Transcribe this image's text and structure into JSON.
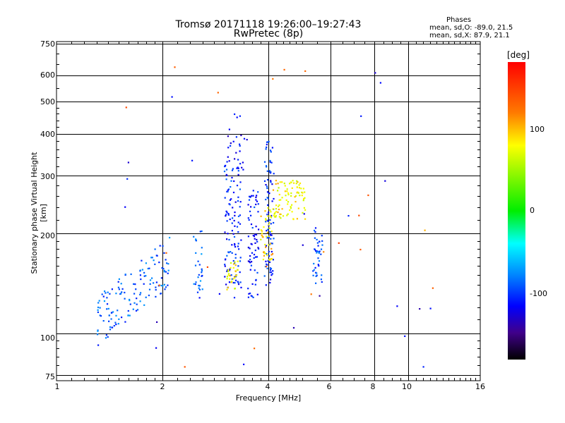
{
  "chart_data": {
    "type": "scatter",
    "title": "Tromsø 20171118 19:26:00–19:27:43",
    "subtitle": "RwPretec (8p)",
    "xlabel": "Frequency [MHz]",
    "ylabel": "Stationary phase Virtual Height [km]",
    "xscale": "log",
    "yscale": "log",
    "xlim": [
      1,
      16
    ],
    "ylim": [
      72,
      760
    ],
    "x_ticks": [
      "1",
      "2",
      "4",
      "6",
      "8",
      "10",
      "16"
    ],
    "y_ticks": [
      "75",
      "100",
      "200",
      "300",
      "400",
      "500",
      "600",
      "750"
    ],
    "grid": true,
    "phase_stats": {
      "heading": "Phases",
      "o_mode": "mean, sd,O: -89.0, 21.5",
      "x_mode": "mean, sd,X:  87.9, 21.1"
    },
    "colorbar": {
      "label": "[deg]",
      "range": [
        -180,
        180
      ],
      "ticks": [
        "100",
        "0",
        "-100"
      ]
    },
    "clusters": [
      {
        "name": "low-frequency trace",
        "x_range": [
          1.3,
          2.1
        ],
        "y_range": [
          105,
          210
        ],
        "phase": -90,
        "count": 140
      },
      {
        "name": "2.5 MHz column",
        "x_range": [
          2.45,
          2.6
        ],
        "y_range": [
          130,
          215
        ],
        "phase": -85,
        "count": 30
      },
      {
        "name": "3.1 MHz column",
        "x_range": [
          3.0,
          3.35
        ],
        "y_range": [
          128,
          320
        ],
        "phase": -105,
        "count": 110
      },
      {
        "name": "3.1 MHz high echoes",
        "x_range": [
          3.0,
          3.5
        ],
        "y_range": [
          300,
          460
        ],
        "phase": -115,
        "count": 30
      },
      {
        "name": "3.6 MHz column",
        "x_range": [
          3.5,
          3.75
        ],
        "y_range": [
          128,
          270
        ],
        "phase": -110,
        "count": 70
      },
      {
        "name": "4.0 MHz column",
        "x_range": [
          3.9,
          4.15
        ],
        "y_range": [
          140,
          380
        ],
        "phase": -105,
        "count": 90
      },
      {
        "name": "4.5-5 MHz X-trace",
        "x_range": [
          4.1,
          5.1
        ],
        "y_range": [
          220,
          290
        ],
        "phase": 95,
        "count": 90
      },
      {
        "name": "4.0 MHz X-trace",
        "x_range": [
          3.8,
          4.1
        ],
        "y_range": [
          165,
          240
        ],
        "phase": 100,
        "count": 45
      },
      {
        "name": "3.2 MHz X-echoes",
        "x_range": [
          3.05,
          3.3
        ],
        "y_range": [
          135,
          170
        ],
        "phase": 95,
        "count": 30
      },
      {
        "name": "5.5 MHz column",
        "x_range": [
          5.35,
          5.7
        ],
        "y_range": [
          140,
          210
        ],
        "phase": -95,
        "count": 40
      },
      {
        "name": "scattered",
        "x_range": [
          1.5,
          12
        ],
        "y_range": [
          75,
          650
        ],
        "phase": 0,
        "count": 45
      }
    ]
  }
}
